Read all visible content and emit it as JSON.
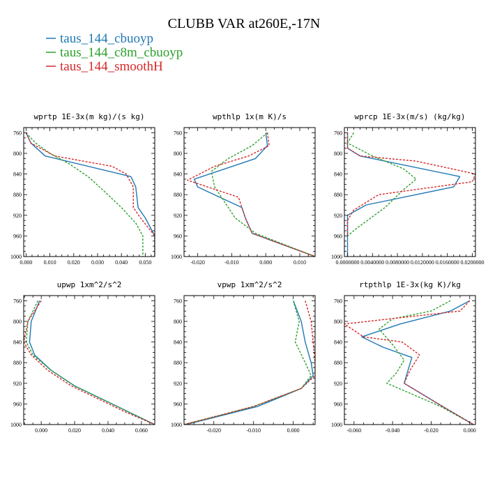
{
  "figure": {
    "title": "CLUBB VAR at260E,-17N"
  },
  "legend": [
    {
      "label": "taus_144_cbuoyp",
      "color": "#1f77b4",
      "dashed": false
    },
    {
      "label": "taus_144_c8m_cbuoyp",
      "color": "#2ca02c",
      "dashed": false
    },
    {
      "label": "taus_144_smoothH",
      "color": "#d62728",
      "dashed": false
    }
  ],
  "chart_data": [
    {
      "type": "line",
      "title": "wprtp  1E-3x(m kg)/(s kg)",
      "xlim": [
        -0.001,
        0.054
      ],
      "xticks": [
        0.0,
        0.01,
        0.02,
        0.03,
        0.04,
        0.05
      ],
      "xtick_labels": [
        "0.000",
        "0.010",
        "0.020",
        "0.030",
        "0.040",
        "0.050"
      ],
      "ylim": [
        1000,
        750
      ],
      "yticks": [
        760,
        800,
        840,
        880,
        920,
        960,
        1000
      ],
      "series": [
        {
          "color": "#1f77b4",
          "dashed": false,
          "x": [
            0.0,
            0.002,
            0.008,
            0.044,
            0.046,
            0.047,
            0.05,
            0.054,
            0.054
          ],
          "y": [
            760,
            780,
            805,
            845,
            865,
            905,
            925,
            960,
            1000
          ]
        },
        {
          "color": "#2ca02c",
          "dashed": true,
          "x": [
            0.0,
            0.004,
            0.01,
            0.018,
            0.026,
            0.032,
            0.04,
            0.046,
            0.049,
            0.049
          ],
          "y": [
            760,
            780,
            800,
            820,
            845,
            870,
            905,
            935,
            960,
            1000
          ]
        },
        {
          "color": "#d62728",
          "dashed": true,
          "x": [
            0.0,
            0.002,
            0.012,
            0.036,
            0.042,
            0.045,
            0.045,
            0.048,
            0.054,
            0.054
          ],
          "y": [
            760,
            780,
            805,
            825,
            840,
            865,
            905,
            925,
            960,
            1000
          ]
        }
      ]
    },
    {
      "type": "line",
      "title": "wpthlp  1x(m K)/s",
      "xlim": [
        -0.024,
        0.0145
      ],
      "xticks": [
        -0.02,
        -0.01,
        0.0,
        0.01
      ],
      "xtick_labels": [
        "-0.020",
        "-0.010",
        "0.000",
        "0.010"
      ],
      "ylim": [
        1000,
        750
      ],
      "yticks": [
        760,
        800,
        840,
        880,
        920,
        960,
        1000
      ],
      "series": [
        {
          "color": "#1f77b4",
          "dashed": false,
          "x": [
            0.0,
            0.0005,
            -0.003,
            -0.021,
            -0.02,
            -0.007,
            -0.006,
            -0.004,
            0.0145
          ],
          "y": [
            760,
            785,
            810,
            850,
            865,
            905,
            925,
            955,
            1000
          ]
        },
        {
          "color": "#2ca02c",
          "dashed": true,
          "x": [
            0.0005,
            -0.004,
            -0.011,
            -0.016,
            -0.015,
            -0.011,
            -0.009,
            -0.003,
            0.0145
          ],
          "y": [
            760,
            785,
            810,
            835,
            865,
            905,
            925,
            955,
            1000
          ]
        },
        {
          "color": "#d62728",
          "dashed": true,
          "x": [
            0.0005,
            0.001,
            -0.005,
            -0.015,
            -0.023,
            -0.008,
            -0.006,
            -0.004,
            0.0145
          ],
          "y": [
            760,
            785,
            805,
            825,
            852,
            885,
            925,
            955,
            1000
          ]
        }
      ]
    },
    {
      "type": "line",
      "title": "wprcp  1E-3x(m/s) (kg/kg)",
      "xlim": [
        -0.0005,
        0.0205
      ],
      "xticks": [
        0.0,
        0.004,
        0.008,
        0.012,
        0.016,
        0.02
      ],
      "xtick_labels": [
        "0.0000000",
        "0.0040000",
        "0.0080000",
        "0.0120000",
        "0.0160000",
        "0.0200000"
      ],
      "ylim": [
        1000,
        750
      ],
      "yticks": [
        760,
        800,
        840,
        880,
        920,
        960,
        1000
      ],
      "series": [
        {
          "color": "#1f77b4",
          "dashed": false,
          "x": [
            0.0,
            0.0,
            0.002,
            0.018,
            0.017,
            0.003,
            0.0,
            0.0,
            0.0
          ],
          "y": [
            760,
            790,
            805,
            845,
            865,
            900,
            920,
            960,
            1000
          ]
        },
        {
          "color": "#2ca02c",
          "dashed": true,
          "x": [
            0.001,
            0.0,
            0.004,
            0.009,
            0.011,
            0.009,
            0.006,
            0.0015,
            0.0
          ],
          "y": [
            760,
            780,
            805,
            830,
            850,
            870,
            905,
            945,
            960
          ]
        },
        {
          "color": "#d62728",
          "dashed": true,
          "x": [
            0.0,
            0.0,
            0.002,
            0.011,
            0.0205,
            0.02,
            0.005,
            0.001,
            0.0,
            0.0
          ],
          "y": [
            760,
            790,
            805,
            815,
            840,
            855,
            880,
            910,
            930,
            960
          ]
        }
      ]
    },
    {
      "type": "line",
      "title": "upwp  1xm^2/s^2",
      "xlim": [
        -0.0105,
        0.068
      ],
      "xticks": [
        0.0,
        0.02,
        0.04,
        0.06
      ],
      "xtick_labels": [
        "0.000",
        "0.020",
        "0.040",
        "0.060"
      ],
      "ylim": [
        1000,
        750
      ],
      "yticks": [
        760,
        800,
        840,
        880,
        920,
        960,
        1000
      ],
      "series": [
        {
          "color": "#1f77b4",
          "dashed": false,
          "x": [
            -0.001,
            -0.006,
            -0.007,
            -0.004,
            0.006,
            0.02,
            0.036,
            0.052,
            0.068
          ],
          "y": [
            760,
            800,
            840,
            865,
            895,
            925,
            950,
            975,
            1000
          ]
        },
        {
          "color": "#2ca02c",
          "dashed": true,
          "x": [
            -0.002,
            -0.008,
            -0.009,
            -0.005,
            0.006,
            0.02,
            0.036,
            0.052,
            0.068
          ],
          "y": [
            760,
            800,
            840,
            865,
            895,
            925,
            950,
            975,
            1000
          ]
        },
        {
          "color": "#d62728",
          "dashed": true,
          "x": [
            0.0,
            -0.008,
            -0.0105,
            -0.006,
            0.004,
            0.018,
            0.034,
            0.05,
            0.068
          ],
          "y": [
            760,
            800,
            840,
            865,
            895,
            925,
            950,
            975,
            1000
          ]
        }
      ]
    },
    {
      "type": "line",
      "title": "vpwp  1xm^2/s^2",
      "xlim": [
        -0.0275,
        0.0055
      ],
      "xticks": [
        -0.02,
        -0.01,
        0.0
      ],
      "xtick_labels": [
        "-0.020",
        "-0.010",
        "0.000"
      ],
      "ylim": [
        1000,
        750
      ],
      "yticks": [
        760,
        800,
        840,
        880,
        920,
        960,
        1000
      ],
      "series": [
        {
          "color": "#1f77b4",
          "dashed": false,
          "x": [
            0.0,
            0.002,
            0.003,
            0.0045,
            0.005,
            0.002,
            -0.009,
            -0.027
          ],
          "y": [
            760,
            800,
            840,
            880,
            905,
            930,
            965,
            1000
          ]
        },
        {
          "color": "#2ca02c",
          "dashed": true,
          "x": [
            0.0,
            0.0015,
            0.0005,
            0.003,
            0.0045,
            0.002,
            -0.01,
            -0.0275
          ],
          "y": [
            760,
            800,
            840,
            880,
            905,
            930,
            965,
            1000
          ]
        },
        {
          "color": "#d62728",
          "dashed": true,
          "x": [
            0.003,
            0.0045,
            0.005,
            0.0055,
            0.0055,
            0.002,
            -0.01,
            -0.0275
          ],
          "y": [
            760,
            800,
            840,
            880,
            905,
            930,
            965,
            1000
          ]
        }
      ]
    },
    {
      "type": "line",
      "title": "rtpthlp  1E-3x(kg K)/kg",
      "xlim": [
        -0.065,
        0.003
      ],
      "xticks": [
        -0.06,
        -0.04,
        -0.02,
        0.0
      ],
      "xtick_labels": [
        "-0.060",
        "-0.040",
        "-0.020",
        "0.000"
      ],
      "ylim": [
        1000,
        750
      ],
      "yticks": [
        760,
        800,
        840,
        880,
        920,
        960,
        1000
      ],
      "series": [
        {
          "color": "#1f77b4",
          "dashed": false,
          "x": [
            0.0,
            -0.01,
            -0.036,
            -0.056,
            -0.045,
            -0.03,
            -0.032,
            -0.034,
            -0.014,
            0.002
          ],
          "y": [
            760,
            780,
            805,
            830,
            850,
            870,
            895,
            920,
            965,
            1000
          ]
        },
        {
          "color": "#2ca02c",
          "dashed": true,
          "x": [
            -0.01,
            -0.02,
            -0.04,
            -0.047,
            -0.04,
            -0.034,
            -0.038,
            -0.043,
            -0.015,
            0.002
          ],
          "y": [
            760,
            780,
            795,
            815,
            845,
            875,
            900,
            920,
            965,
            1000
          ]
        },
        {
          "color": "#d62728",
          "dashed": true,
          "x": [
            0.0,
            -0.005,
            -0.065,
            -0.055,
            -0.035,
            -0.026,
            -0.031,
            -0.034,
            -0.014,
            0.002
          ],
          "y": [
            760,
            780,
            805,
            830,
            840,
            865,
            895,
            920,
            965,
            1000
          ]
        }
      ]
    }
  ]
}
